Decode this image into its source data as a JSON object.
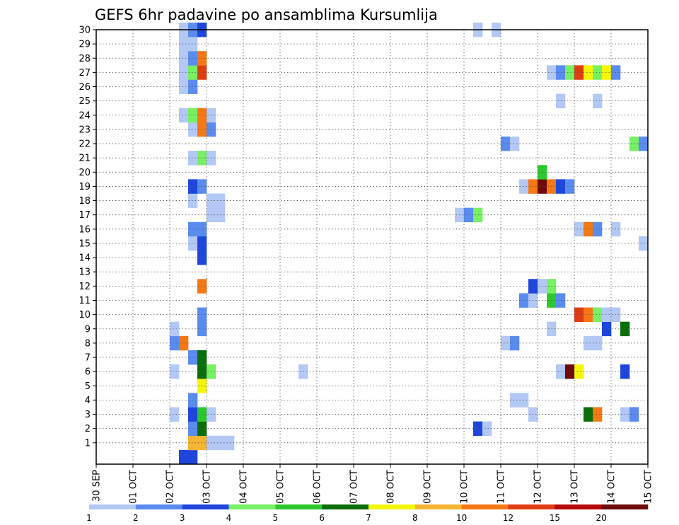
{
  "chart_data": {
    "type": "heatmap",
    "title": "GEFS 6hr padavine po ansamblima Kursumlija",
    "x_ticks": [
      "30 SEP",
      "01 OCT",
      "02 OCT",
      "03 OCT",
      "04 OCT",
      "05 OCT",
      "06 OCT",
      "07 OCT",
      "08 OCT",
      "09 OCT",
      "10 OCT",
      "11 OCT",
      "12 OCT",
      "13 OCT",
      "14 OCT",
      "15 OCT"
    ],
    "y_ticks": [
      "1",
      "2",
      "3",
      "4",
      "5",
      "6",
      "7",
      "8",
      "9",
      "10",
      "11",
      "12",
      "13",
      "14",
      "15",
      "16",
      "17",
      "18",
      "19",
      "20",
      "21",
      "22",
      "23",
      "24",
      "25",
      "26",
      "27",
      "28",
      "29",
      "30"
    ],
    "x_range": [
      "30 SEP 00Z",
      "15 OCT 00Z"
    ],
    "y_range": [
      0,
      30
    ],
    "grid": true,
    "legend_placement": "bottom",
    "legend": {
      "labels": [
        "1",
        "2",
        "3",
        "4",
        "5",
        "6",
        "7",
        "8",
        "10",
        "12",
        "15",
        "20"
      ],
      "colors": [
        "#b4c8f5",
        "#5a8cf0",
        "#1e46dc",
        "#78f064",
        "#2cc82c",
        "#0a6e0a",
        "#f5f50a",
        "#f5b432",
        "#f57814",
        "#e03c14",
        "#b40a0a",
        "#6e0a0a"
      ]
    },
    "cells": [
      {
        "m": 0,
        "t": 9,
        "v": 3
      },
      {
        "m": 0,
        "t": 10,
        "v": 3
      },
      {
        "m": 1,
        "t": 10,
        "v": 8
      },
      {
        "m": 1,
        "t": 11,
        "v": 8
      },
      {
        "m": 1,
        "t": 12,
        "v": 1
      },
      {
        "m": 1,
        "t": 13,
        "v": 1
      },
      {
        "m": 1,
        "t": 14,
        "v": 1
      },
      {
        "m": 2,
        "t": 10,
        "v": 2
      },
      {
        "m": 2,
        "t": 11,
        "v": 6
      },
      {
        "m": 2,
        "t": 41,
        "v": 3
      },
      {
        "m": 2,
        "t": 42,
        "v": 1
      },
      {
        "m": 3,
        "t": 8,
        "v": 1
      },
      {
        "m": 3,
        "t": 10,
        "v": 3
      },
      {
        "m": 3,
        "t": 11,
        "v": 5
      },
      {
        "m": 3,
        "t": 12,
        "v": 1
      },
      {
        "m": 3,
        "t": 47,
        "v": 1
      },
      {
        "m": 3,
        "t": 53,
        "v": 6
      },
      {
        "m": 3,
        "t": 54,
        "v": 10
      },
      {
        "m": 3,
        "t": 57,
        "v": 1
      },
      {
        "m": 3,
        "t": 58,
        "v": 2
      },
      {
        "m": 4,
        "t": 10,
        "v": 2
      },
      {
        "m": 4,
        "t": 45,
        "v": 1
      },
      {
        "m": 4,
        "t": 46,
        "v": 1
      },
      {
        "m": 5,
        "t": 11,
        "v": 7
      },
      {
        "m": 6,
        "t": 8,
        "v": 1
      },
      {
        "m": 6,
        "t": 11,
        "v": 6
      },
      {
        "m": 6,
        "t": 12,
        "v": 4
      },
      {
        "m": 6,
        "t": 22,
        "v": 1
      },
      {
        "m": 6,
        "t": 50,
        "v": 1
      },
      {
        "m": 6,
        "t": 51,
        "v": 20
      },
      {
        "m": 6,
        "t": 52,
        "v": 7
      },
      {
        "m": 6,
        "t": 57,
        "v": 3
      },
      {
        "m": 7,
        "t": 10,
        "v": 2
      },
      {
        "m": 7,
        "t": 11,
        "v": 6
      },
      {
        "m": 8,
        "t": 8,
        "v": 2
      },
      {
        "m": 8,
        "t": 9,
        "v": 10
      },
      {
        "m": 8,
        "t": 44,
        "v": 1
      },
      {
        "m": 8,
        "t": 45,
        "v": 2
      },
      {
        "m": 8,
        "t": 53,
        "v": 1
      },
      {
        "m": 8,
        "t": 54,
        "v": 1
      },
      {
        "m": 9,
        "t": 8,
        "v": 1
      },
      {
        "m": 9,
        "t": 11,
        "v": 2
      },
      {
        "m": 9,
        "t": 49,
        "v": 1
      },
      {
        "m": 9,
        "t": 55,
        "v": 3
      },
      {
        "m": 9,
        "t": 57,
        "v": 6
      },
      {
        "m": 10,
        "t": 11,
        "v": 2
      },
      {
        "m": 10,
        "t": 52,
        "v": 12
      },
      {
        "m": 10,
        "t": 53,
        "v": 10
      },
      {
        "m": 10,
        "t": 54,
        "v": 4
      },
      {
        "m": 10,
        "t": 55,
        "v": 1
      },
      {
        "m": 10,
        "t": 56,
        "v": 1
      },
      {
        "m": 11,
        "t": 46,
        "v": 2
      },
      {
        "m": 11,
        "t": 47,
        "v": 1
      },
      {
        "m": 11,
        "t": 49,
        "v": 5
      },
      {
        "m": 11,
        "t": 50,
        "v": 2
      },
      {
        "m": 12,
        "t": 11,
        "v": 10
      },
      {
        "m": 12,
        "t": 47,
        "v": 3
      },
      {
        "m": 12,
        "t": 48,
        "v": 1
      },
      {
        "m": 12,
        "t": 49,
        "v": 4
      },
      {
        "m": 14,
        "t": 11,
        "v": 3
      },
      {
        "m": 15,
        "t": 10,
        "v": 1
      },
      {
        "m": 15,
        "t": 11,
        "v": 3
      },
      {
        "m": 15,
        "t": 59,
        "v": 1
      },
      {
        "m": 16,
        "t": 10,
        "v": 2
      },
      {
        "m": 16,
        "t": 11,
        "v": 2
      },
      {
        "m": 16,
        "t": 52,
        "v": 1
      },
      {
        "m": 16,
        "t": 53,
        "v": 10
      },
      {
        "m": 16,
        "t": 54,
        "v": 2
      },
      {
        "m": 16,
        "t": 56,
        "v": 1
      },
      {
        "m": 17,
        "t": 12,
        "v": 1
      },
      {
        "m": 17,
        "t": 13,
        "v": 1
      },
      {
        "m": 17,
        "t": 39,
        "v": 1
      },
      {
        "m": 17,
        "t": 40,
        "v": 2
      },
      {
        "m": 17,
        "t": 41,
        "v": 4
      },
      {
        "m": 18,
        "t": 10,
        "v": 1
      },
      {
        "m": 18,
        "t": 12,
        "v": 1
      },
      {
        "m": 18,
        "t": 13,
        "v": 1
      },
      {
        "m": 19,
        "t": 10,
        "v": 3
      },
      {
        "m": 19,
        "t": 11,
        "v": 2
      },
      {
        "m": 19,
        "t": 46,
        "v": 1
      },
      {
        "m": 19,
        "t": 47,
        "v": 10
      },
      {
        "m": 19,
        "t": 48,
        "v": 20
      },
      {
        "m": 19,
        "t": 49,
        "v": 10
      },
      {
        "m": 19,
        "t": 50,
        "v": 3
      },
      {
        "m": 19,
        "t": 51,
        "v": 2
      },
      {
        "m": 20,
        "t": 48,
        "v": 5
      },
      {
        "m": 21,
        "t": 10,
        "v": 1
      },
      {
        "m": 21,
        "t": 11,
        "v": 4
      },
      {
        "m": 21,
        "t": 12,
        "v": 1
      },
      {
        "m": 22,
        "t": 44,
        "v": 2
      },
      {
        "m": 22,
        "t": 45,
        "v": 1
      },
      {
        "m": 22,
        "t": 58,
        "v": 4
      },
      {
        "m": 22,
        "t": 59,
        "v": 2
      },
      {
        "m": 23,
        "t": 10,
        "v": 1
      },
      {
        "m": 23,
        "t": 11,
        "v": 10
      },
      {
        "m": 23,
        "t": 12,
        "v": 2
      },
      {
        "m": 24,
        "t": 9,
        "v": 1
      },
      {
        "m": 24,
        "t": 10,
        "v": 4
      },
      {
        "m": 24,
        "t": 11,
        "v": 10
      },
      {
        "m": 24,
        "t": 12,
        "v": 1
      },
      {
        "m": 25,
        "t": 50,
        "v": 1
      },
      {
        "m": 25,
        "t": 54,
        "v": 1
      },
      {
        "m": 26,
        "t": 9,
        "v": 1
      },
      {
        "m": 26,
        "t": 10,
        "v": 2
      },
      {
        "m": 27,
        "t": 9,
        "v": 1
      },
      {
        "m": 27,
        "t": 10,
        "v": 4
      },
      {
        "m": 27,
        "t": 11,
        "v": 12
      },
      {
        "m": 27,
        "t": 49,
        "v": 1
      },
      {
        "m": 27,
        "t": 50,
        "v": 2
      },
      {
        "m": 27,
        "t": 51,
        "v": 4
      },
      {
        "m": 27,
        "t": 52,
        "v": 12
      },
      {
        "m": 27,
        "t": 53,
        "v": 7
      },
      {
        "m": 27,
        "t": 54,
        "v": 4
      },
      {
        "m": 27,
        "t": 55,
        "v": 7
      },
      {
        "m": 27,
        "t": 56,
        "v": 2
      },
      {
        "m": 28,
        "t": 9,
        "v": 1
      },
      {
        "m": 28,
        "t": 10,
        "v": 2
      },
      {
        "m": 28,
        "t": 11,
        "v": 10
      },
      {
        "m": 29,
        "t": 9,
        "v": 1
      },
      {
        "m": 29,
        "t": 10,
        "v": 1
      },
      {
        "m": 30,
        "t": 9,
        "v": 1
      },
      {
        "m": 30,
        "t": 10,
        "v": 2
      },
      {
        "m": 30,
        "t": 11,
        "v": 3
      },
      {
        "m": 30,
        "t": 41,
        "v": 1
      },
      {
        "m": 30,
        "t": 43,
        "v": 1
      }
    ]
  }
}
